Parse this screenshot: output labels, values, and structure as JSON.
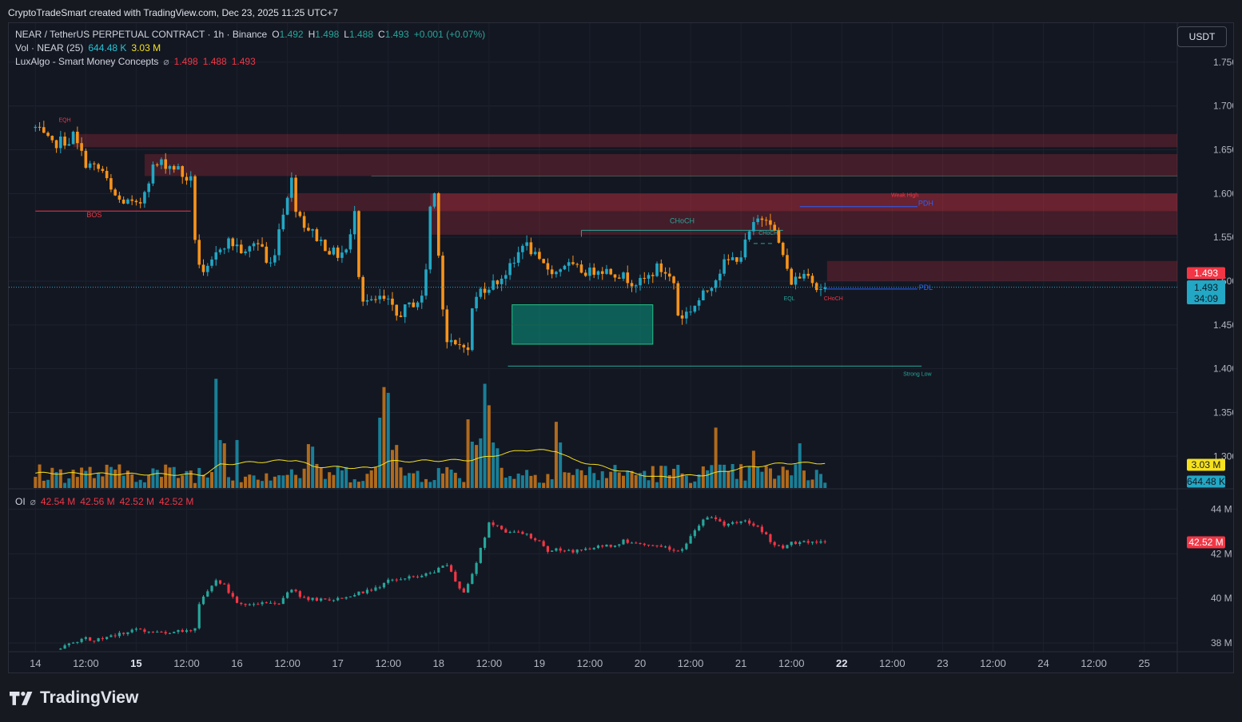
{
  "header": {
    "attribution": "CryptoTradeSmart created with TradingView.com, Dec 23, 2025 11:25 UTC+7"
  },
  "legend": {
    "symbol": "NEAR / TetherUS PERPETUAL CONTRACT · 1h · Binance",
    "o_label": "O",
    "o": "1.492",
    "h_label": "H",
    "h": "1.498",
    "l_label": "L",
    "l": "1.488",
    "c_label": "C",
    "c": "1.493",
    "change": "+0.001 (+0.07%)",
    "vol_label": "Vol · NEAR (25)",
    "vol_value": "644.48 K",
    "vol_ma": "3.03 M",
    "smc_label": "LuxAlgo - Smart Money Concepts",
    "smc_icon": "hide-icon",
    "smc_values": [
      "1.498",
      "1.488",
      "1.493"
    ],
    "oi_label": "OI",
    "oi_values": [
      "42.54 M",
      "42.56 M",
      "42.52 M",
      "42.52 M"
    ]
  },
  "currency_button": "USDT",
  "footer": {
    "brand": "TradingView"
  },
  "colors": {
    "up": "#22a7c4",
    "down": "#f7931a",
    "bg": "#131722",
    "supply": "#f23645",
    "demand": "#089981"
  },
  "chart_data": [
    {
      "type": "candlestick",
      "title": "NEAR / TetherUS PERPETUAL CONTRACT · 1h · Binance",
      "y_ticks": [
        "1.750",
        "1.700",
        "1.650",
        "1.600",
        "1.550",
        "1.500",
        "1.450",
        "1.400",
        "1.350",
        "1.300"
      ],
      "y_tick_values": [
        1.75,
        1.7,
        1.65,
        1.6,
        1.55,
        1.5,
        1.45,
        1.4,
        1.35,
        1.3
      ],
      "ylim": [
        1.28,
        1.79
      ],
      "x_ticks": [
        "14",
        "12:00",
        "15",
        "12:00",
        "16",
        "12:00",
        "17",
        "12:00",
        "18",
        "12:00",
        "19",
        "12:00",
        "20",
        "12:00",
        "21",
        "12:00",
        "22",
        "12:00",
        "23",
        "12:00",
        "24",
        "12:00",
        "25"
      ],
      "x_tick_hours": [
        0,
        12,
        24,
        36,
        48,
        60,
        72,
        84,
        96,
        108,
        120,
        132,
        144,
        156,
        168,
        180,
        192,
        204,
        216,
        228,
        240,
        252,
        264
      ],
      "x_bold": [
        "15",
        "22"
      ],
      "last_price": "1.493",
      "last_price_value": 1.493,
      "countdown": "34:09",
      "session_high_label": "1.493",
      "waypoints": [
        [
          0,
          1.675
        ],
        [
          2,
          1.665
        ],
        [
          4,
          1.655
        ],
        [
          6,
          1.66
        ],
        [
          8,
          1.66
        ],
        [
          9,
          1.667
        ],
        [
          10,
          1.655
        ],
        [
          12,
          1.635
        ],
        [
          14,
          1.63
        ],
        [
          16,
          1.625
        ],
        [
          18,
          1.602
        ],
        [
          20,
          1.592
        ],
        [
          22,
          1.59
        ],
        [
          24,
          1.585
        ],
        [
          25,
          1.59
        ],
        [
          26,
          1.605
        ],
        [
          28,
          1.63
        ],
        [
          30,
          1.635
        ],
        [
          32,
          1.632
        ],
        [
          34,
          1.628
        ],
        [
          35,
          1.62
        ],
        [
          37,
          1.615
        ],
        [
          38,
          1.55
        ],
        [
          39,
          1.52
        ],
        [
          40,
          1.505
        ],
        [
          42,
          1.52
        ],
        [
          44,
          1.54
        ],
        [
          46,
          1.545
        ],
        [
          48,
          1.54
        ],
        [
          50,
          1.53
        ],
        [
          52,
          1.545
        ],
        [
          54,
          1.54
        ],
        [
          55,
          1.52
        ],
        [
          56,
          1.52
        ],
        [
          57,
          1.535
        ],
        [
          58,
          1.56
        ],
        [
          60,
          1.6
        ],
        [
          61,
          1.615
        ],
        [
          62,
          1.585
        ],
        [
          64,
          1.565
        ],
        [
          66,
          1.555
        ],
        [
          68,
          1.545
        ],
        [
          70,
          1.535
        ],
        [
          72,
          1.53
        ],
        [
          74,
          1.535
        ],
        [
          75,
          1.55
        ],
        [
          76,
          1.585
        ],
        [
          77,
          1.51
        ],
        [
          78,
          1.48
        ],
        [
          80,
          1.475
        ],
        [
          82,
          1.48
        ],
        [
          84,
          1.475
        ],
        [
          86,
          1.46
        ],
        [
          88,
          1.468
        ],
        [
          90,
          1.475
        ],
        [
          92,
          1.48
        ],
        [
          93,
          1.515
        ],
        [
          94,
          1.585
        ],
        [
          95,
          1.6
        ],
        [
          96,
          1.535
        ],
        [
          97,
          1.47
        ],
        [
          98,
          1.43
        ],
        [
          100,
          1.425
        ],
        [
          102,
          1.43
        ],
        [
          103,
          1.418
        ],
        [
          104,
          1.47
        ],
        [
          106,
          1.49
        ],
        [
          108,
          1.495
        ],
        [
          110,
          1.5
        ],
        [
          112,
          1.51
        ],
        [
          114,
          1.52
        ],
        [
          116,
          1.545
        ],
        [
          118,
          1.535
        ],
        [
          120,
          1.52
        ],
        [
          122,
          1.515
        ],
        [
          124,
          1.51
        ],
        [
          126,
          1.52
        ],
        [
          128,
          1.515
        ],
        [
          130,
          1.512
        ],
        [
          132,
          1.51
        ],
        [
          134,
          1.515
        ],
        [
          136,
          1.512
        ],
        [
          138,
          1.51
        ],
        [
          140,
          1.505
        ],
        [
          142,
          1.5
        ],
        [
          144,
          1.498
        ],
        [
          146,
          1.505
        ],
        [
          148,
          1.515
        ],
        [
          150,
          1.51
        ],
        [
          152,
          1.498
        ],
        [
          153,
          1.462
        ],
        [
          154,
          1.46
        ],
        [
          156,
          1.468
        ],
        [
          158,
          1.478
        ],
        [
          160,
          1.49
        ],
        [
          162,
          1.505
        ],
        [
          164,
          1.52
        ],
        [
          166,
          1.525
        ],
        [
          168,
          1.53
        ],
        [
          170,
          1.555
        ],
        [
          172,
          1.57
        ],
        [
          174,
          1.575
        ],
        [
          175,
          1.57
        ],
        [
          176,
          1.555
        ],
        [
          178,
          1.53
        ],
        [
          179,
          1.51
        ],
        [
          180,
          1.5
        ],
        [
          182,
          1.505
        ],
        [
          184,
          1.512
        ],
        [
          186,
          1.492
        ],
        [
          188,
          1.493
        ]
      ],
      "zones": [
        {
          "kind": "supply",
          "from_hour": 9,
          "to_hour": "end",
          "top": 1.668,
          "bottom": 1.653
        },
        {
          "kind": "supply",
          "from_hour": 26,
          "to_hour": "end",
          "top": 1.645,
          "bottom": 1.62
        },
        {
          "kind": "supply",
          "from_hour": 60,
          "to_hour": "end",
          "top": 1.6,
          "bottom": 1.58
        },
        {
          "kind": "supply",
          "from_hour": 94,
          "to_hour": "end",
          "top": 1.6,
          "bottom": 1.553
        },
        {
          "kind": "supply",
          "from_hour": 188.5,
          "to_hour": "end",
          "top": 1.523,
          "bottom": 1.5
        },
        {
          "kind": "demand",
          "from_hour": 113.5,
          "to_hour": 147,
          "top": 1.473,
          "bottom": 1.428
        }
      ],
      "lines": [
        {
          "kind": "bos",
          "color": "#f23645",
          "from_hour": 0,
          "to_hour": 37,
          "y": 1.58
        },
        {
          "kind": "choch",
          "color": "#26a69a",
          "from_hour": 130,
          "to_hour": 178,
          "y": 1.558
        },
        {
          "kind": "pdh",
          "color": "#2962ff",
          "from_hour": 182,
          "to_hour": 210,
          "y": 1.585
        },
        {
          "kind": "pdl",
          "color": "#2962ff",
          "from_hour": 188,
          "to_hour": 210,
          "y": 1.491
        },
        {
          "kind": "strong_low",
          "color": "#26a69a",
          "from_hour": 112.5,
          "to_hour": 211,
          "y": 1.403
        },
        {
          "kind": "choch_small",
          "color": "#26a69a",
          "from_hour": 171,
          "to_hour": 176,
          "y": 1.543
        }
      ],
      "labels": [
        {
          "text": "EQH",
          "color": "#f23645",
          "hour": 7,
          "y": 1.682
        },
        {
          "text": "BOS",
          "color": "#f23645",
          "hour": 14,
          "y": 1.573
        },
        {
          "text": "CHoCH",
          "color": "#26a69a",
          "hour": 154,
          "y": 1.566
        },
        {
          "text": "CHoCH",
          "color": "#26a69a",
          "hour": 174.5,
          "y": 1.553
        },
        {
          "text": "Weak High",
          "color": "#f23645",
          "hour": 207,
          "y": 1.596
        },
        {
          "text": "PDH",
          "color": "#2962ff",
          "hour": 212,
          "y": 1.586
        },
        {
          "text": "PDL",
          "color": "#2962ff",
          "hour": 212,
          "y": 1.49
        },
        {
          "text": "EQL",
          "color": "#26a69a",
          "hour": 179.5,
          "y": 1.478
        },
        {
          "text": "CHoCH",
          "color": "#f23645",
          "hour": 190,
          "y": 1.478
        },
        {
          "text": "Strong Low",
          "color": "#26a69a",
          "hour": 210,
          "y": 1.392
        }
      ]
    },
    {
      "type": "bar",
      "title": "Vol · NEAR (25)",
      "y_tags": [
        "3.03 M",
        "644.48 K"
      ],
      "ma_value": 3.03,
      "last_value": 0.644,
      "ylim": [
        0,
        14
      ],
      "spikes": [
        {
          "hour": 43,
          "value": 13.2
        },
        {
          "hour": 44,
          "value": 5.8
        },
        {
          "hour": 45,
          "value": 5.4
        },
        {
          "hour": 48,
          "value": 5.8
        },
        {
          "hour": 65,
          "value": 5.3
        },
        {
          "hour": 66,
          "value": 5.0
        },
        {
          "hour": 82,
          "value": 8.5
        },
        {
          "hour": 83,
          "value": 12.2
        },
        {
          "hour": 84,
          "value": 11.5
        },
        {
          "hour": 85,
          "value": 4.6
        },
        {
          "hour": 86,
          "value": 5.2
        },
        {
          "hour": 103,
          "value": 8.3
        },
        {
          "hour": 104,
          "value": 5.6
        },
        {
          "hour": 105,
          "value": 5.2
        },
        {
          "hour": 106,
          "value": 6.0
        },
        {
          "hour": 107,
          "value": 12.6
        },
        {
          "hour": 108,
          "value": 10.0
        },
        {
          "hour": 109,
          "value": 5.5
        },
        {
          "hour": 110,
          "value": 4.8
        },
        {
          "hour": 124,
          "value": 8.0
        },
        {
          "hour": 125,
          "value": 5.5
        },
        {
          "hour": 162,
          "value": 7.3
        },
        {
          "hour": 171,
          "value": 4.5
        },
        {
          "hour": 182,
          "value": 5.4
        }
      ],
      "ma_points": [
        [
          0,
          1.8
        ],
        [
          40,
          1.6
        ],
        [
          44,
          2.8
        ],
        [
          48,
          3.0
        ],
        [
          62,
          3.4
        ],
        [
          66,
          2.6
        ],
        [
          80,
          2.4
        ],
        [
          84,
          3.2
        ],
        [
          104,
          3.4
        ],
        [
          116,
          4.6
        ],
        [
          124,
          4.5
        ],
        [
          128,
          3.4
        ],
        [
          140,
          2.0
        ],
        [
          148,
          1.3
        ],
        [
          160,
          1.6
        ],
        [
          168,
          2.4
        ],
        [
          178,
          3.0
        ],
        [
          188,
          3.03
        ]
      ]
    },
    {
      "type": "candlestick",
      "title": "OI",
      "y_ticks": [
        "44 M",
        "42 M",
        "40 M",
        "38 M"
      ],
      "y_tick_values": [
        44,
        42,
        40,
        38
      ],
      "ylim": [
        37.6,
        44.7
      ],
      "last_value": "42.52 M",
      "last_value_num": 42.52,
      "waypoints": [
        [
          6,
          37.7
        ],
        [
          8,
          38.0
        ],
        [
          10,
          38.1
        ],
        [
          12,
          38.2
        ],
        [
          14,
          38.1
        ],
        [
          16,
          38.2
        ],
        [
          18,
          38.3
        ],
        [
          20,
          38.4
        ],
        [
          24,
          38.6
        ],
        [
          28,
          38.5
        ],
        [
          32,
          38.5
        ],
        [
          38,
          38.6
        ],
        [
          39,
          39.8
        ],
        [
          41,
          40.3
        ],
        [
          43,
          40.8
        ],
        [
          45,
          40.6
        ],
        [
          46,
          40.2
        ],
        [
          48,
          39.8
        ],
        [
          50,
          39.7
        ],
        [
          54,
          39.8
        ],
        [
          58,
          39.8
        ],
        [
          61,
          40.4
        ],
        [
          64,
          40.0
        ],
        [
          70,
          39.9
        ],
        [
          74,
          40.1
        ],
        [
          78,
          40.3
        ],
        [
          82,
          40.5
        ],
        [
          84,
          40.8
        ],
        [
          86,
          40.8
        ],
        [
          88,
          40.9
        ],
        [
          92,
          41.0
        ],
        [
          96,
          41.3
        ],
        [
          98,
          41.5
        ],
        [
          100,
          40.8
        ],
        [
          102,
          40.2
        ],
        [
          104,
          41.1
        ],
        [
          106,
          42.2
        ],
        [
          108,
          43.4
        ],
        [
          110,
          43.2
        ],
        [
          112,
          43.0
        ],
        [
          116,
          42.9
        ],
        [
          120,
          42.6
        ],
        [
          122,
          42.1
        ],
        [
          124,
          42.2
        ],
        [
          128,
          42.1
        ],
        [
          130,
          42.2
        ],
        [
          134,
          42.3
        ],
        [
          138,
          42.4
        ],
        [
          140,
          42.6
        ],
        [
          144,
          42.4
        ],
        [
          148,
          42.3
        ],
        [
          152,
          42.2
        ],
        [
          154,
          42.2
        ],
        [
          156,
          42.8
        ],
        [
          158,
          43.3
        ],
        [
          160,
          43.7
        ],
        [
          162,
          43.5
        ],
        [
          164,
          43.3
        ],
        [
          168,
          43.5
        ],
        [
          170,
          43.4
        ],
        [
          172,
          43.2
        ],
        [
          174,
          42.8
        ],
        [
          176,
          42.4
        ],
        [
          178,
          42.3
        ],
        [
          180,
          42.5
        ],
        [
          184,
          42.54
        ],
        [
          188,
          42.52
        ]
      ]
    }
  ]
}
